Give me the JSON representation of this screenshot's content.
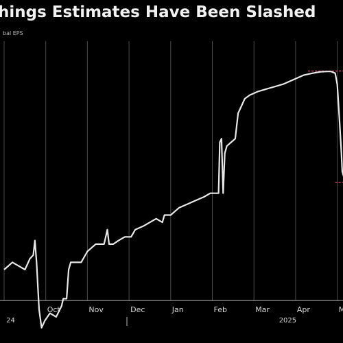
{
  "chart_data": {
    "type": "line",
    "title": "hings Estimates Have Been Slashed",
    "ylabel": "bal EPS",
    "x_ticks": [
      {
        "label": "Oct",
        "t": 1.0
      },
      {
        "label": "Nov",
        "t": 2.0
      },
      {
        "label": "Dec",
        "t": 3.0
      },
      {
        "label": "Jan",
        "t": 4.0
      },
      {
        "label": "Feb",
        "t": 5.0
      },
      {
        "label": "Mar",
        "t": 6.0
      },
      {
        "label": "Apr",
        "t": 7.0
      },
      {
        "label": "May",
        "t": 8.0
      }
    ],
    "year_labels": [
      {
        "label": "24",
        "t": 0.15
      },
      {
        "label": "2025",
        "t": 6.7
      }
    ],
    "grid": "vertical",
    "series": [
      {
        "color": "#e8e8e8",
        "points": [
          [
            0.0,
            60
          ],
          [
            0.2,
            58
          ],
          [
            0.35,
            59
          ],
          [
            0.5,
            60
          ],
          [
            0.62,
            57
          ],
          [
            0.7,
            56
          ],
          [
            0.74,
            52
          ],
          [
            0.78,
            58
          ],
          [
            0.84,
            71
          ],
          [
            0.9,
            76
          ],
          [
            0.98,
            74
          ],
          [
            1.1,
            72
          ],
          [
            1.25,
            73
          ],
          [
            1.38,
            70
          ],
          [
            1.42,
            68
          ],
          [
            1.5,
            68
          ],
          [
            1.55,
            60
          ],
          [
            1.6,
            58
          ],
          [
            1.75,
            58
          ],
          [
            1.85,
            58
          ],
          [
            2.0,
            55
          ],
          [
            2.1,
            54
          ],
          [
            2.2,
            53
          ],
          [
            2.4,
            53
          ],
          [
            2.48,
            49
          ],
          [
            2.52,
            53
          ],
          [
            2.62,
            53
          ],
          [
            2.75,
            52
          ],
          [
            2.9,
            51
          ],
          [
            3.05,
            51
          ],
          [
            3.15,
            49
          ],
          [
            3.35,
            48
          ],
          [
            3.5,
            47
          ],
          [
            3.65,
            46
          ],
          [
            3.8,
            47
          ],
          [
            3.85,
            45
          ],
          [
            4.0,
            45
          ],
          [
            4.2,
            43
          ],
          [
            4.4,
            42
          ],
          [
            4.6,
            41
          ],
          [
            4.8,
            40
          ],
          [
            4.95,
            39
          ],
          [
            5.15,
            39
          ],
          [
            5.18,
            25
          ],
          [
            5.22,
            24
          ],
          [
            5.26,
            39
          ],
          [
            5.3,
            28
          ],
          [
            5.35,
            26
          ],
          [
            5.45,
            25
          ],
          [
            5.55,
            24
          ],
          [
            5.62,
            17
          ],
          [
            5.7,
            15
          ],
          [
            5.78,
            13
          ],
          [
            5.9,
            12
          ],
          [
            6.1,
            11
          ],
          [
            6.4,
            10
          ],
          [
            6.7,
            9
          ],
          [
            7.0,
            7.5
          ],
          [
            7.2,
            6.5
          ],
          [
            7.4,
            6
          ],
          [
            7.6,
            5.6
          ],
          [
            7.75,
            5.5
          ],
          [
            7.85,
            5.5
          ],
          [
            7.95,
            6
          ],
          [
            8.0,
            9
          ],
          [
            8.05,
            18
          ],
          [
            8.1,
            28
          ],
          [
            8.12,
            33
          ],
          [
            8.17,
            35
          ],
          [
            8.22,
            32
          ]
        ]
      }
    ],
    "annotations": [
      {
        "kind": "dashed-line",
        "color": "#e0457b",
        "from": [
          7.3,
          5.4
        ],
        "to": [
          8.3,
          5.4
        ]
      },
      {
        "kind": "dashed-line",
        "color": "#e0457b",
        "from": [
          7.95,
          36
        ],
        "to": [
          8.3,
          36
        ]
      }
    ]
  }
}
